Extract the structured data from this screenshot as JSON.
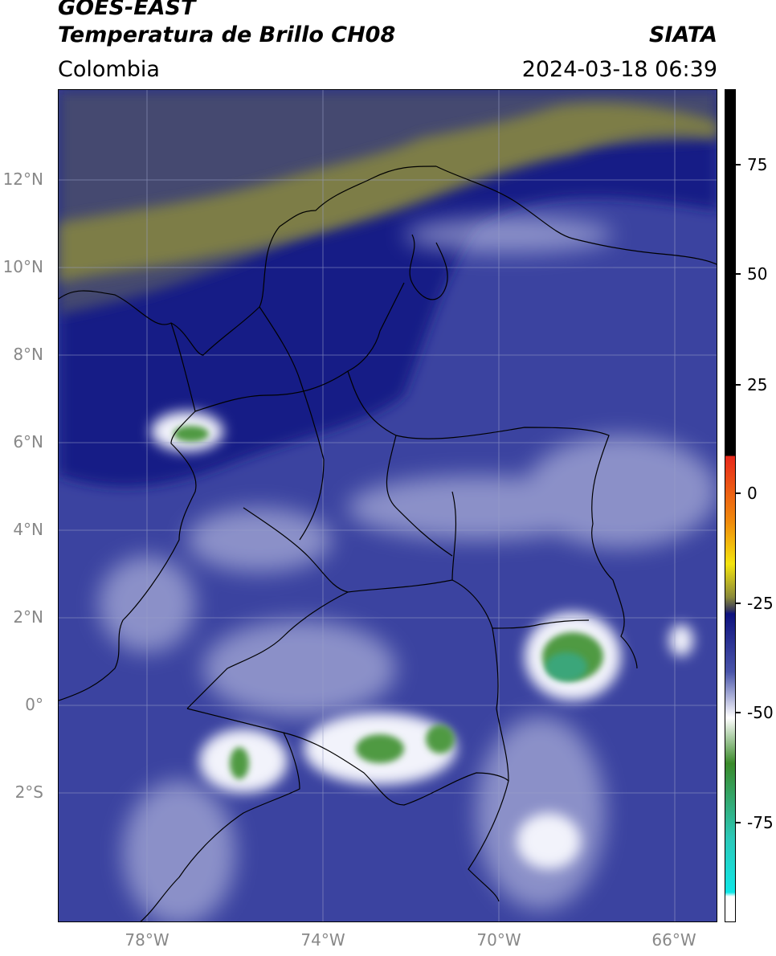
{
  "header": {
    "title_line1": "GOES-EAST",
    "title_line2": "Temperatura de Brillo CH08",
    "brand": "SIATA",
    "region": "Colombia",
    "timestamp": "2024-03-18 06:39"
  },
  "axes": {
    "lat_labels": [
      "12°N",
      "10°N",
      "8°N",
      "6°N",
      "4°N",
      "2°N",
      "0°",
      "2°S"
    ],
    "lon_labels": [
      "78°W",
      "74°W",
      "70°W",
      "66°W"
    ]
  },
  "colorbar": {
    "ticks": [
      "75",
      "50",
      "25",
      "0",
      "-25",
      "-50",
      "-75"
    ],
    "colors": {
      "black": "#000000",
      "red": "#e8281c",
      "orange": "#f08c0c",
      "yellow": "#f4e40e",
      "olive": "#8a8a3a",
      "navy": "#0e127e",
      "blue": "#4a55aa",
      "white": "#ffffff",
      "green": "#3a8a2a",
      "teal": "#2cc8b8",
      "cyan": "#10e6e6"
    }
  },
  "map": {
    "colors": {
      "background": "#3b43a0",
      "deep_navy": "#121a86",
      "dark_band": "#444870",
      "olive_band": "#7d7d46",
      "cloud_light": "#cdd0ea",
      "cloud_white": "#f2f3fb",
      "cloud_green": "#4f9a43",
      "cloud_teal": "#3aa67a",
      "grid": "#9aa0c8",
      "borders": "#000000"
    }
  }
}
